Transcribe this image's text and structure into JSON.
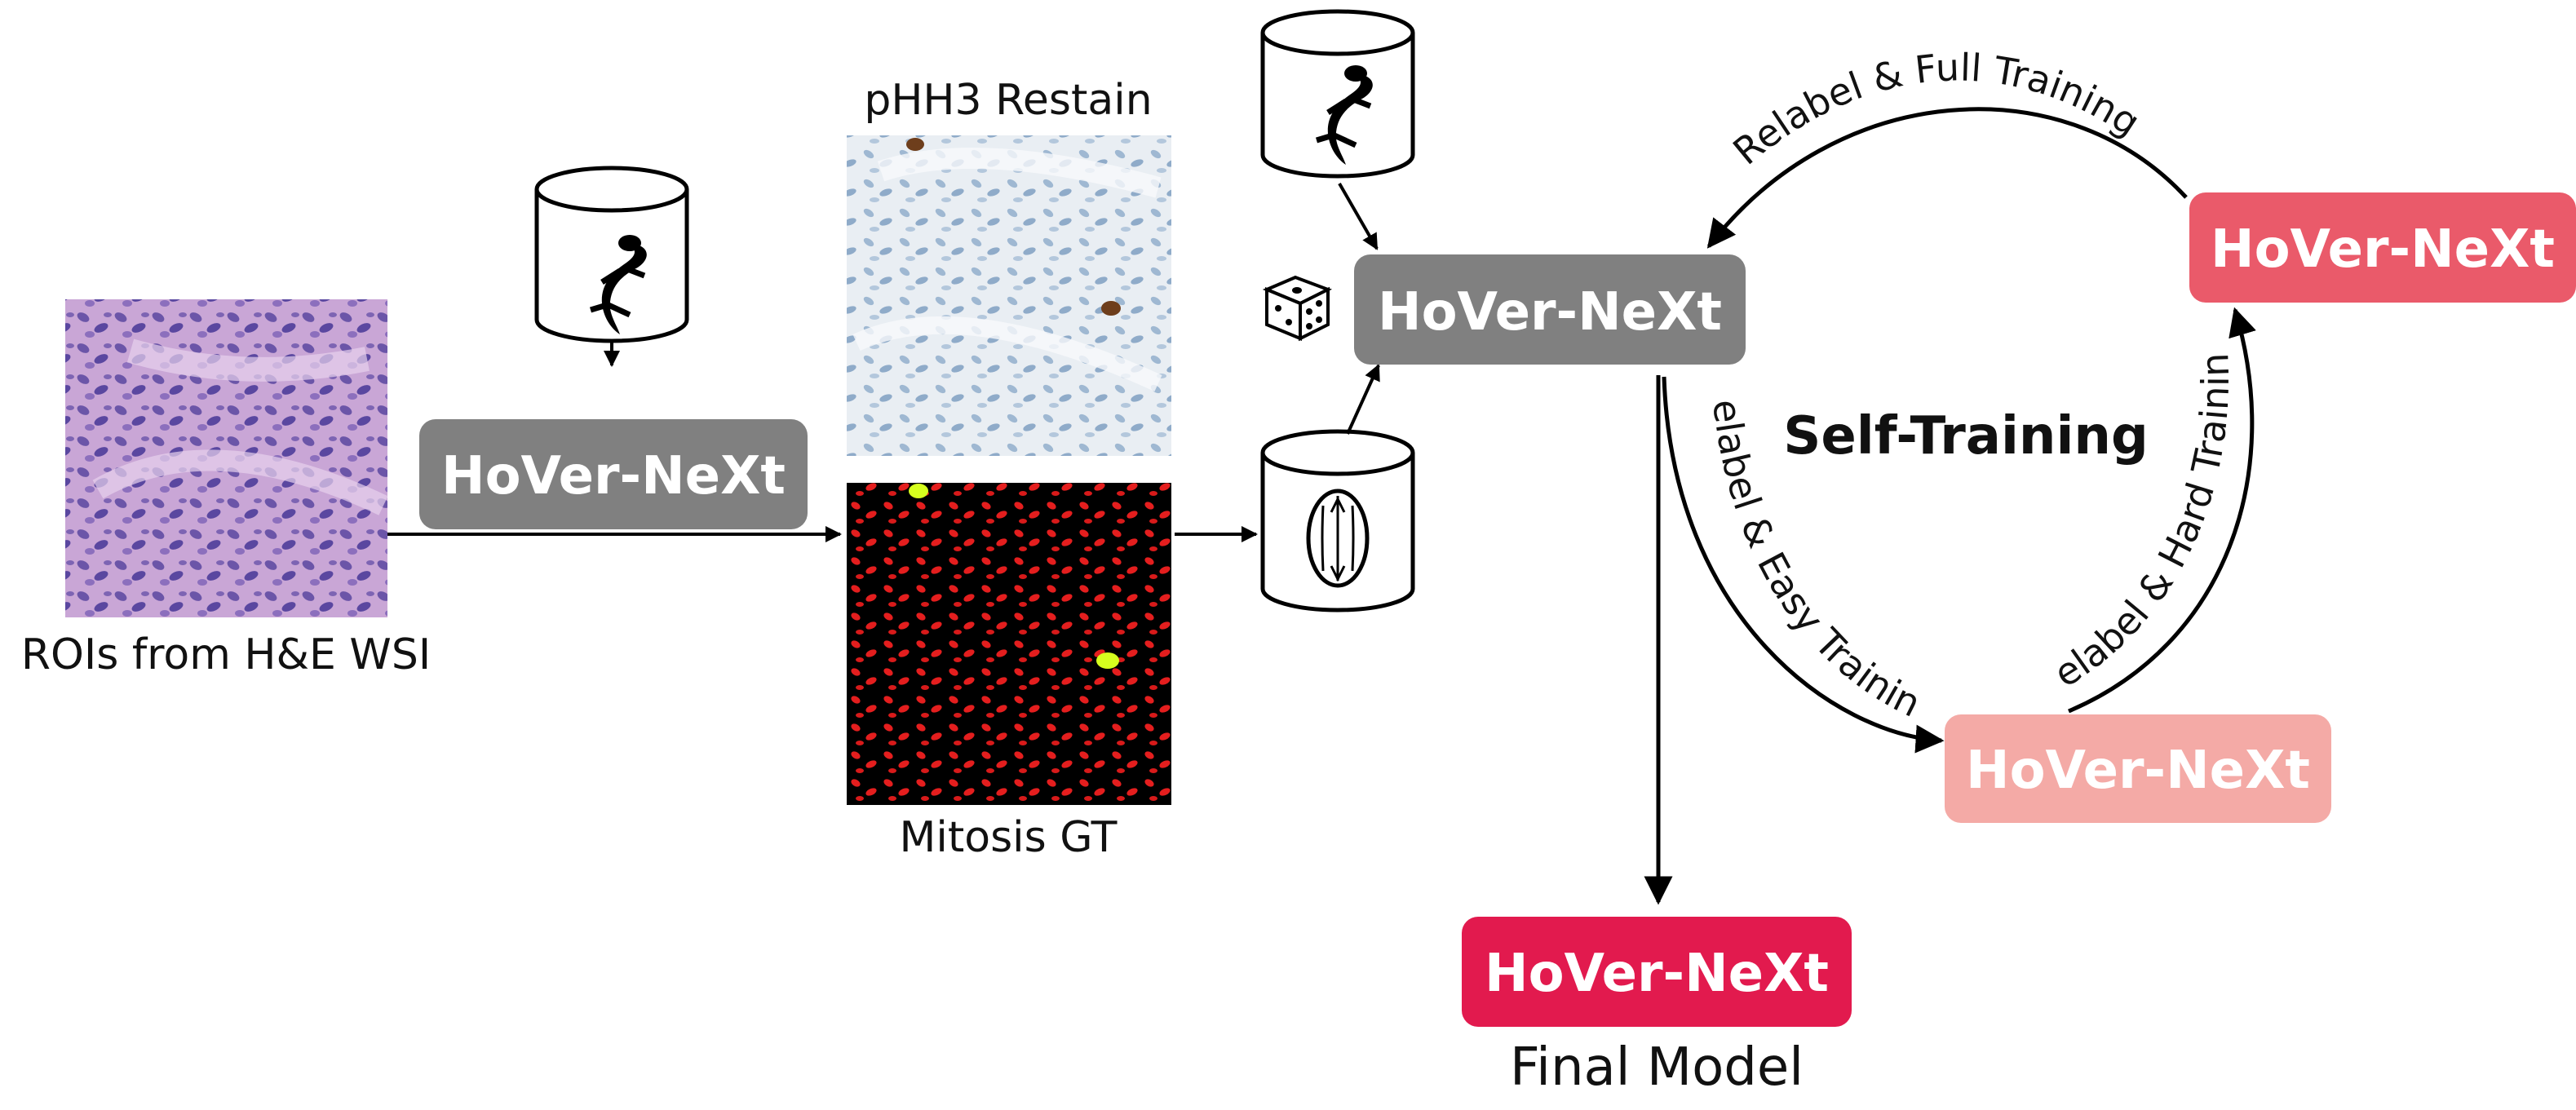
{
  "labels": {
    "rois": "ROIs from H&E WSI",
    "restain": "pHH3 Restain",
    "mitosis_gt": "Mitosis GT",
    "self_training": "Self-Training",
    "final_model": "Final Model"
  },
  "models": {
    "first": "HoVer-NeXt",
    "center": "HoVer-NeXt",
    "cycle_top": "HoVer-NeXt",
    "cycle_bottom": "HoVer-NeXt",
    "final": "HoVer-NeXt"
  },
  "edges": {
    "full": "Relabel & Full Training",
    "hard": "Relabel & Hard Training",
    "easy": "Relabel & Easy Training"
  },
  "colors": {
    "gray": "#808080",
    "red": "#ea5a6a",
    "pink": "#f4aaa6",
    "crimson": "#e21a4e"
  },
  "icons": [
    "lizard-database-icon",
    "mitosis-database-icon",
    "dice-icon"
  ]
}
